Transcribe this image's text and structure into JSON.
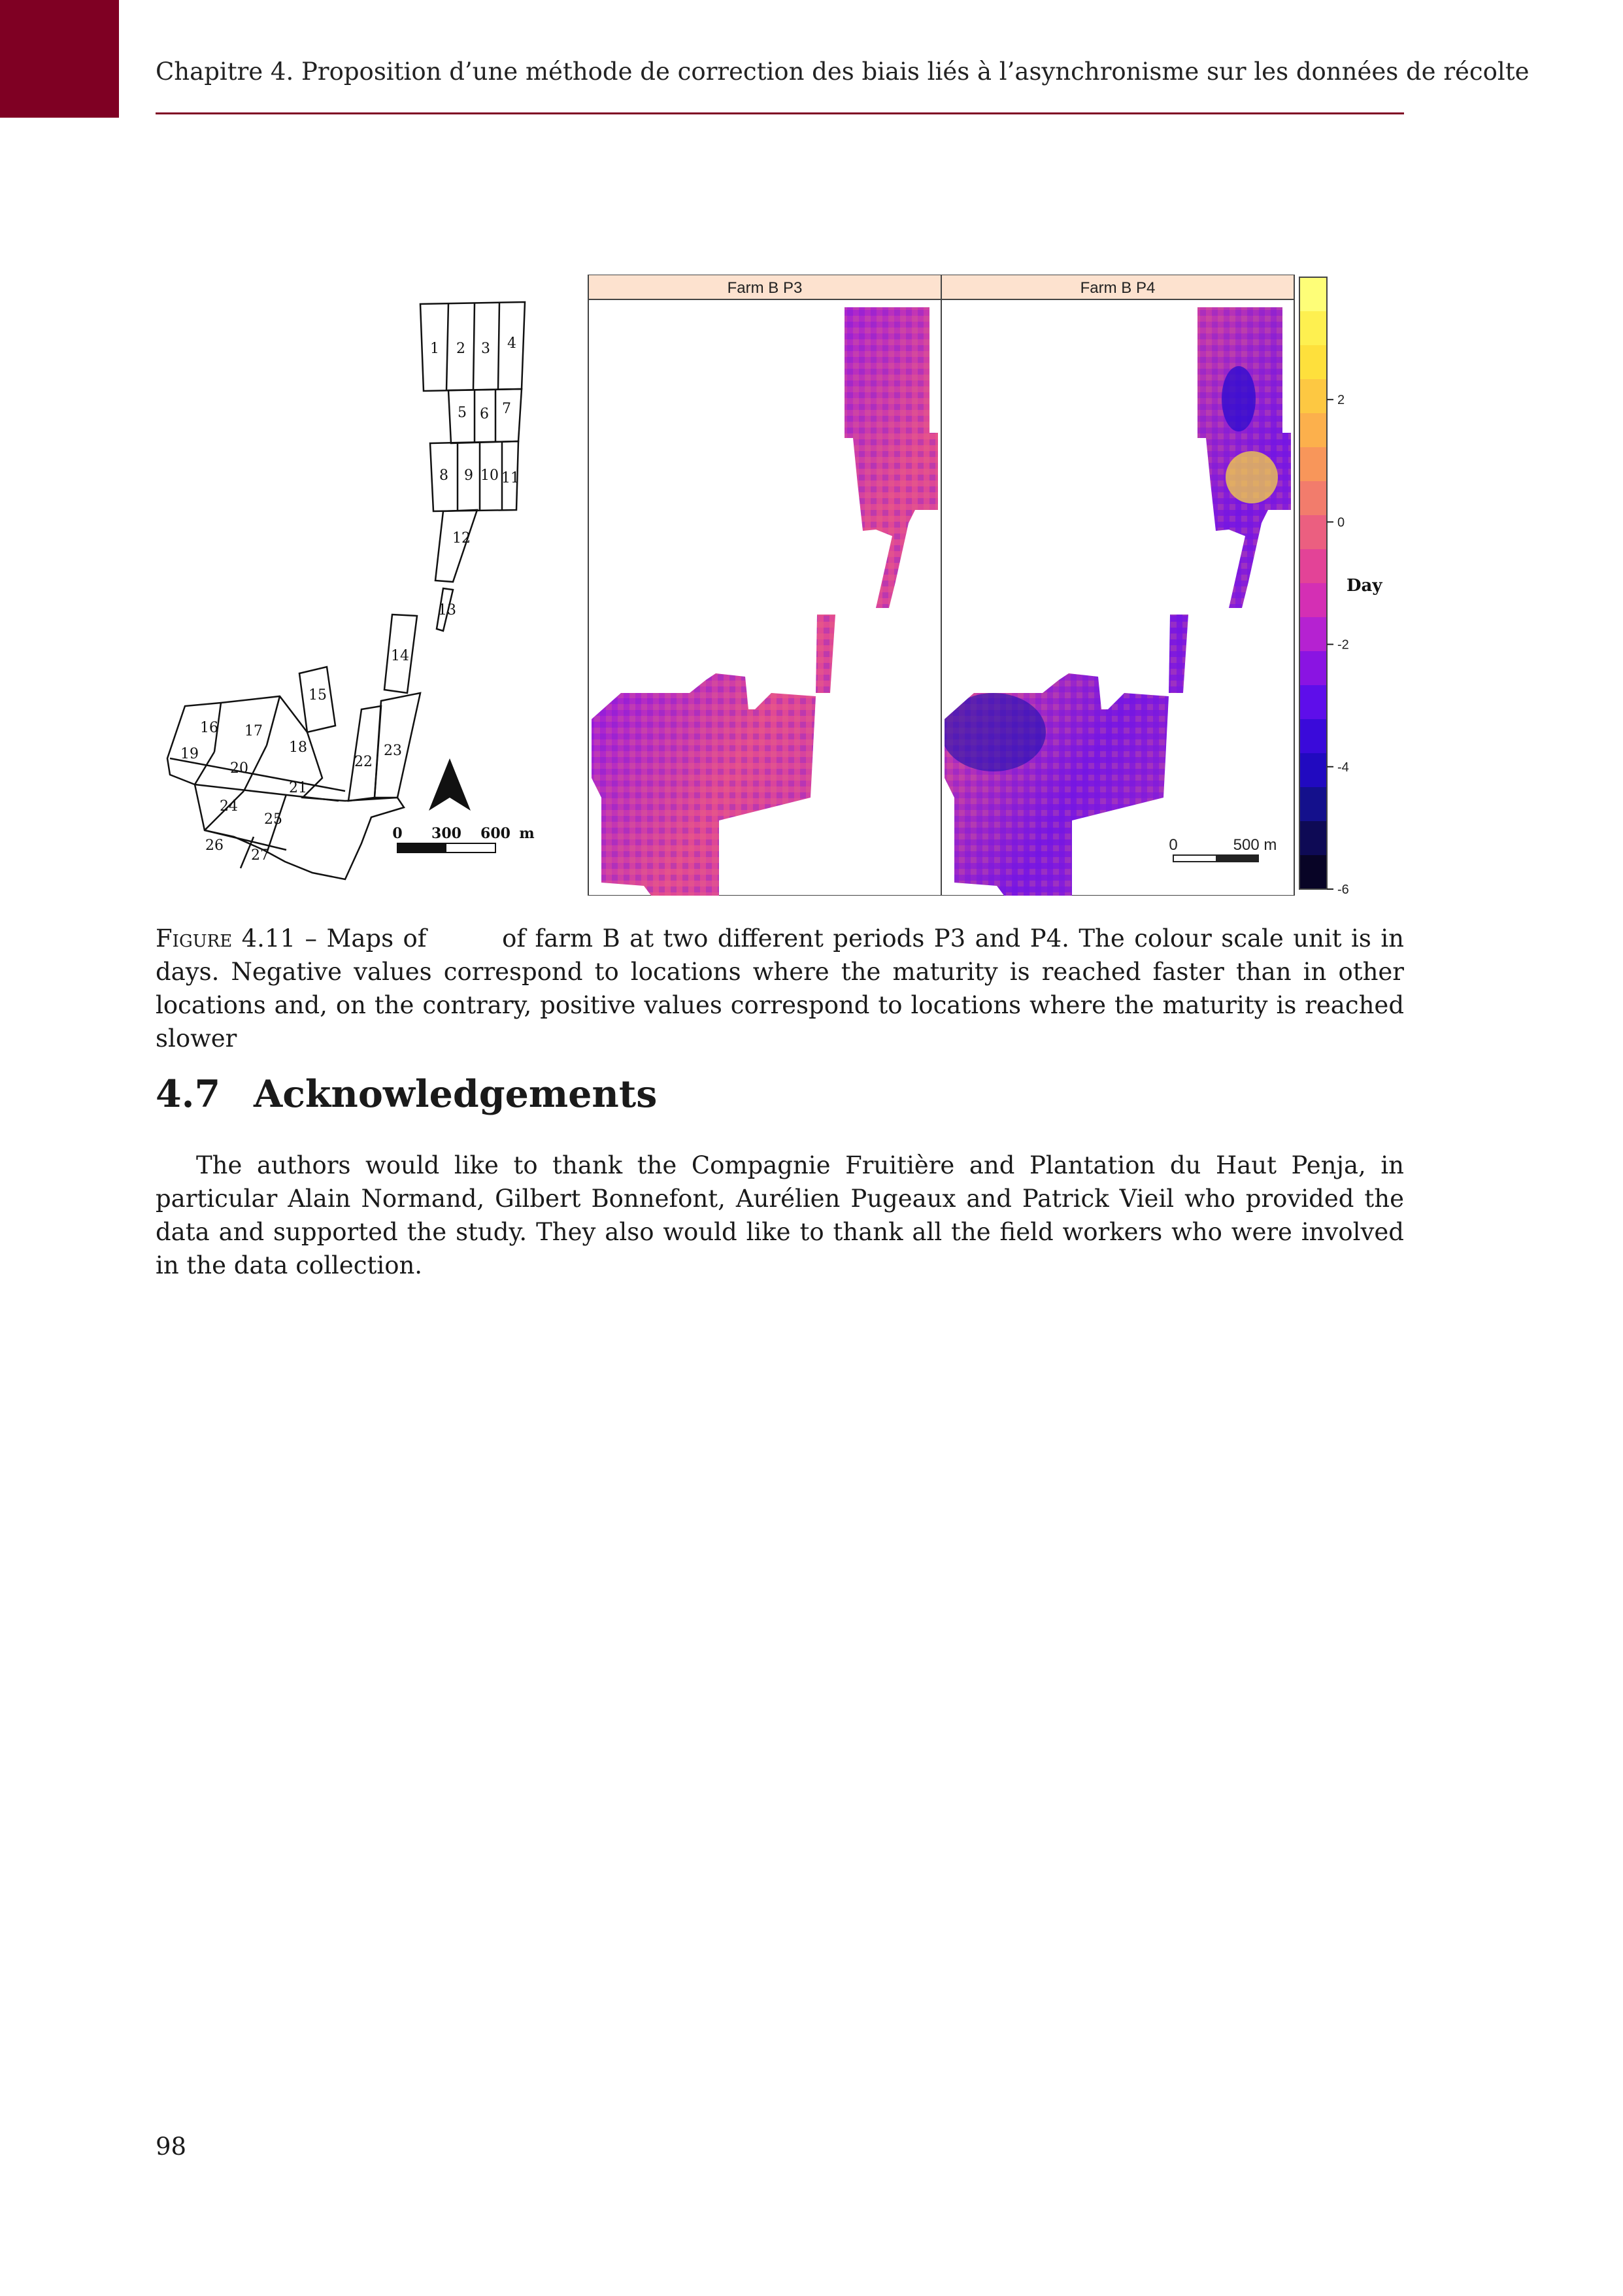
{
  "header": {
    "running_title": "Chapitre 4.  Proposition d’une méthode de correction des biais liés à l’asynchronisme sur les données de récolte"
  },
  "figure": {
    "plot_labels": [
      "1",
      "2",
      "3",
      "4",
      "5",
      "6",
      "7",
      "8",
      "9",
      "10",
      "11",
      "12",
      "13",
      "14",
      "15",
      "16",
      "17",
      "18",
      "19",
      "20",
      "21",
      "22",
      "23",
      "24",
      "25",
      "26",
      "27"
    ],
    "scalebar_left": {
      "labels": [
        "0",
        "300",
        "600"
      ],
      "unit": "m"
    },
    "panel_p3_title": "Farm B P3",
    "panel_p4_title": "Farm B P4",
    "scalebar_right": {
      "labels": [
        "0",
        "500 m"
      ]
    },
    "colorbar": {
      "title": "Day",
      "ticks": [
        "2",
        "0",
        "-2",
        "-4",
        "-6"
      ],
      "colors": [
        "#fefe78",
        "#fef050",
        "#fee03c",
        "#fdc842",
        "#fcb04c",
        "#f8965a",
        "#f27c6c",
        "#eb5f80",
        "#e34397",
        "#d42fb4",
        "#b522d1",
        "#8a14e2",
        "#5e0eea",
        "#3a0ada",
        "#210ac0",
        "#14108c",
        "#0e0a55",
        "#080426"
      ],
      "range": [
        -6,
        4
      ]
    }
  },
  "caption": {
    "label": "Figure 4.11",
    "text": " – Maps of        of farm B at two different periods P3 and P4. The colour scale unit is in days. Negative values correspond to locations where the maturity is reached faster than in other locations and, on the contrary, positive values correspond to locations where the maturity is reached slower"
  },
  "section": {
    "number": "4.7",
    "title": "Acknowledgements"
  },
  "paragraph": "The authors would like to thank the Compagnie Fruitière and Plantation du Haut Penja, in particular Alain Normand, Gilbert Bonnefont, Aurélien Pugeaux and Patrick Vieil who provided the data and supported the study. They also would like to thank all the field workers who were involved in the data collection.",
  "page_number": "98"
}
